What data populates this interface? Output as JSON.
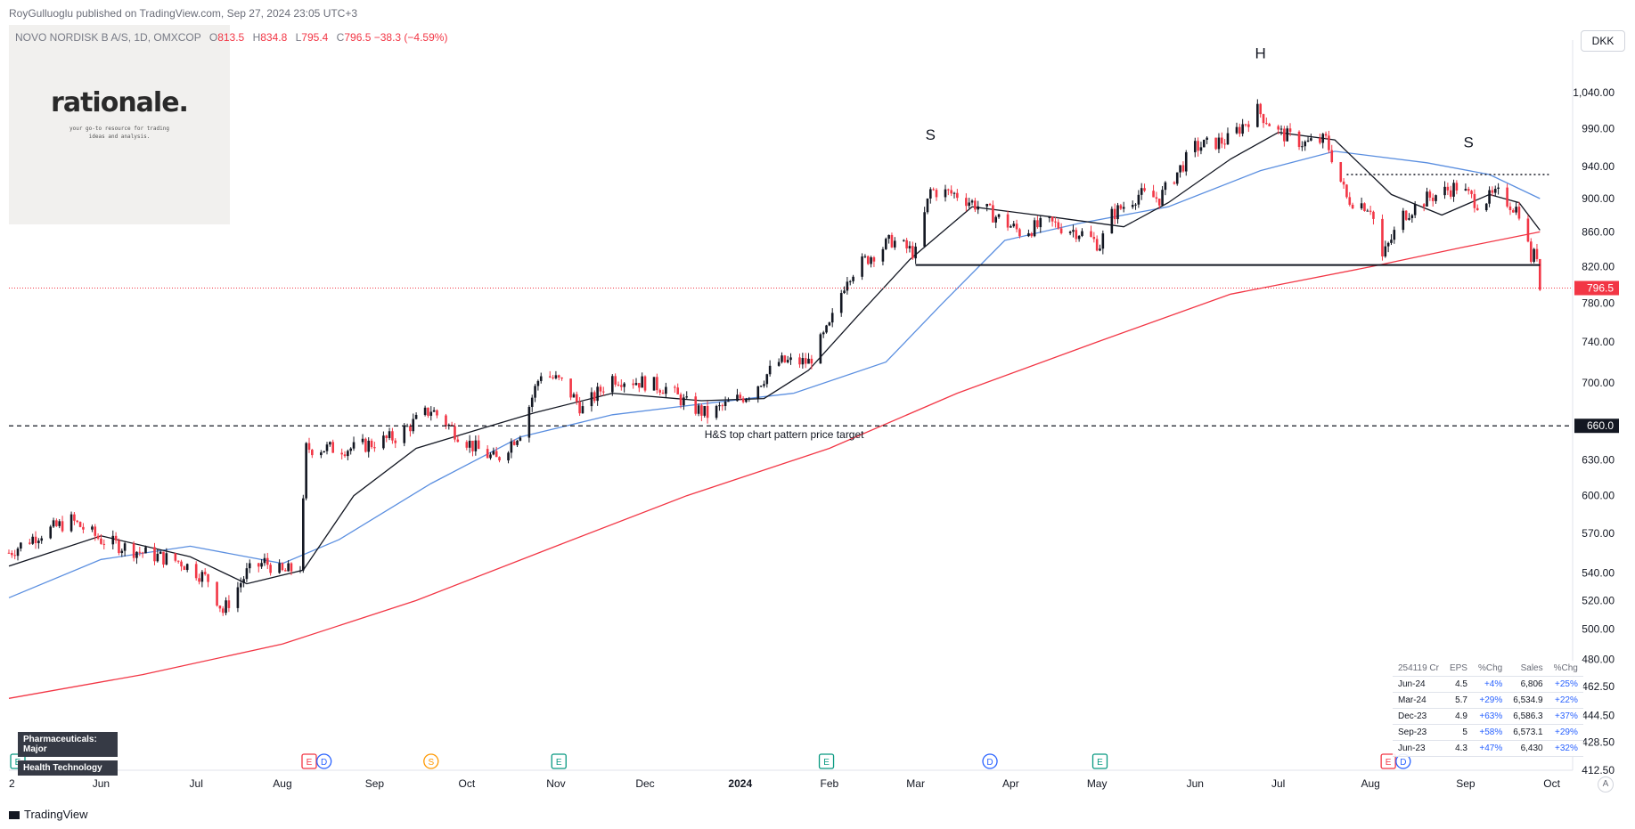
{
  "header": {
    "publisher": "RoyGulluoglu published on TradingView.com, Sep 27, 2024 23:05 UTC+3"
  },
  "legend": {
    "symbol": "NOVO NORDISK B A/S, 1D, OMXCOP",
    "open_label": "O",
    "open": "813.5",
    "high_label": "H",
    "high": "834.8",
    "low_label": "L",
    "low": "795.4",
    "close_label": "C",
    "close": "796.5",
    "change": "−38.3 (−4.59%)"
  },
  "logo": {
    "title": "rationale.",
    "subtitle": "your go-to resource for trading ideas and analysis."
  },
  "currency": "DKK",
  "tags": [
    "Pharmaceuticals: Major",
    "Health Technology"
  ],
  "earnings_table": {
    "headers": [
      "254119 Cr",
      "EPS",
      "%Chg",
      "Sales",
      "%Chg"
    ],
    "rows": [
      [
        "Jun-24",
        "4.5",
        "+4%",
        "6,806",
        "+25%"
      ],
      [
        "Mar-24",
        "5.7",
        "+29%",
        "6,534.9",
        "+22%"
      ],
      [
        "Dec-23",
        "4.9",
        "+63%",
        "6,586.3",
        "+37%"
      ],
      [
        "Sep-23",
        "5",
        "+58%",
        "6,573.1",
        "+29%"
      ],
      [
        "Jun-23",
        "4.3",
        "+47%",
        "6,430",
        "+32%"
      ]
    ]
  },
  "footer": {
    "brand": "TradingView"
  },
  "axis_auto": "A",
  "colors": {
    "up": "#131722",
    "down": "#f23645",
    "ma_fast": "#131722",
    "ma_mid": "#5b8fe0",
    "ma_slow": "#f23645",
    "neckline": "#131722",
    "target": "#131722",
    "last_price_bg": "#f23645"
  },
  "chart_data": {
    "type": "candlestick",
    "y_scale": "log",
    "y_ticks": [
      412.5,
      428.5,
      444.5,
      462.5,
      480,
      500,
      520,
      540,
      570,
      600,
      630,
      660,
      700,
      740,
      780,
      820,
      860,
      900,
      940,
      990,
      1040
    ],
    "y_tick_labels": [
      "412.50",
      "428.50",
      "444.50",
      "462.50",
      "480.00",
      "500.00",
      "520.00",
      "540.00",
      "570.00",
      "600.00",
      "630.00",
      "660.00",
      "700.00",
      "740.00",
      "780.00",
      "820.00",
      "860.00",
      "900.00",
      "940.00",
      "990.00",
      "1,040.00"
    ],
    "x_range": [
      "2023-05-01",
      "2024-10-08"
    ],
    "x_ticks": [
      {
        "date": "2023-05-02",
        "label": "2"
      },
      {
        "date": "2023-06-01",
        "label": "Jun"
      },
      {
        "date": "2023-07-03",
        "label": "Jul"
      },
      {
        "date": "2023-08-01",
        "label": "Aug"
      },
      {
        "date": "2023-09-01",
        "label": "Sep"
      },
      {
        "date": "2023-10-02",
        "label": "Oct"
      },
      {
        "date": "2023-11-01",
        "label": "Nov"
      },
      {
        "date": "2023-12-01",
        "label": "Dec"
      },
      {
        "date": "2024-01-02",
        "label": "2024"
      },
      {
        "date": "2024-02-01",
        "label": "Feb"
      },
      {
        "date": "2024-03-01",
        "label": "Mar"
      },
      {
        "date": "2024-04-02",
        "label": "Apr"
      },
      {
        "date": "2024-05-01",
        "label": "May"
      },
      {
        "date": "2024-06-03",
        "label": "Jun"
      },
      {
        "date": "2024-07-01",
        "label": "Jul"
      },
      {
        "date": "2024-08-01",
        "label": "Aug"
      },
      {
        "date": "2024-09-02",
        "label": "Sep"
      },
      {
        "date": "2024-10-01",
        "label": "Oct"
      }
    ],
    "price_path": [
      [
        "2023-05-01",
        555
      ],
      [
        "2023-05-10",
        568
      ],
      [
        "2023-05-22",
        580
      ],
      [
        "2023-06-01",
        565
      ],
      [
        "2023-06-15",
        555
      ],
      [
        "2023-06-28",
        548
      ],
      [
        "2023-07-07",
        535
      ],
      [
        "2023-07-12",
        512
      ],
      [
        "2023-07-20",
        540
      ],
      [
        "2023-07-26",
        548
      ],
      [
        "2023-08-01",
        540
      ],
      [
        "2023-08-07",
        545
      ],
      [
        "2023-08-09",
        640
      ],
      [
        "2023-08-25",
        640
      ],
      [
        "2023-09-08",
        650
      ],
      [
        "2023-09-20",
        675
      ],
      [
        "2023-09-28",
        655
      ],
      [
        "2023-10-05",
        640
      ],
      [
        "2023-10-12",
        630
      ],
      [
        "2023-10-20",
        655
      ],
      [
        "2023-10-27",
        710
      ],
      [
        "2023-11-03",
        700
      ],
      [
        "2023-11-10",
        675
      ],
      [
        "2023-11-20",
        705
      ],
      [
        "2023-12-01",
        700
      ],
      [
        "2023-12-08",
        695
      ],
      [
        "2023-12-15",
        680
      ],
      [
        "2023-12-22",
        670
      ],
      [
        "2024-01-05",
        690
      ],
      [
        "2024-01-15",
        720
      ],
      [
        "2024-01-25",
        720
      ],
      [
        "2024-02-01",
        755
      ],
      [
        "2024-02-07",
        810
      ],
      [
        "2024-02-14",
        830
      ],
      [
        "2024-02-22",
        850
      ],
      [
        "2024-03-01",
        835
      ],
      [
        "2024-03-06",
        910
      ],
      [
        "2024-03-15",
        905
      ],
      [
        "2024-03-25",
        885
      ],
      [
        "2024-04-05",
        860
      ],
      [
        "2024-04-15",
        870
      ],
      [
        "2024-04-25",
        860
      ],
      [
        "2024-05-02",
        845
      ],
      [
        "2024-05-06",
        880
      ],
      [
        "2024-05-15",
        905
      ],
      [
        "2024-05-22",
        900
      ],
      [
        "2024-06-03",
        965
      ],
      [
        "2024-06-14",
        975
      ],
      [
        "2024-06-24",
        1015
      ],
      [
        "2024-07-01",
        985
      ],
      [
        "2024-07-10",
        970
      ],
      [
        "2024-07-17",
        975
      ],
      [
        "2024-07-24",
        900
      ],
      [
        "2024-08-01",
        890
      ],
      [
        "2024-08-05",
        830
      ],
      [
        "2024-08-12",
        880
      ],
      [
        "2024-08-20",
        900
      ],
      [
        "2024-08-30",
        915
      ],
      [
        "2024-09-06",
        895
      ],
      [
        "2024-09-13",
        905
      ],
      [
        "2024-09-20",
        885
      ],
      [
        "2024-09-24",
        830
      ],
      [
        "2024-09-26",
        835
      ],
      [
        "2024-09-27",
        796.5
      ]
    ],
    "ma_fast": [
      [
        "2023-05-01",
        545
      ],
      [
        "2023-06-01",
        568
      ],
      [
        "2023-07-01",
        552
      ],
      [
        "2023-07-20",
        532
      ],
      [
        "2023-08-08",
        542
      ],
      [
        "2023-08-25",
        600
      ],
      [
        "2023-09-15",
        640
      ],
      [
        "2023-10-10",
        660
      ],
      [
        "2023-10-25",
        672
      ],
      [
        "2023-11-20",
        690
      ],
      [
        "2023-12-20",
        683
      ],
      [
        "2024-01-10",
        685
      ],
      [
        "2024-01-25",
        712
      ],
      [
        "2024-02-10",
        765
      ],
      [
        "2024-02-28",
        828
      ],
      [
        "2024-03-20",
        890
      ],
      [
        "2024-04-15",
        878
      ],
      [
        "2024-05-10",
        866
      ],
      [
        "2024-05-25",
        895
      ],
      [
        "2024-06-15",
        950
      ],
      [
        "2024-07-01",
        985
      ],
      [
        "2024-07-20",
        975
      ],
      [
        "2024-08-08",
        905
      ],
      [
        "2024-08-25",
        880
      ],
      [
        "2024-09-10",
        905
      ],
      [
        "2024-09-20",
        895
      ],
      [
        "2024-09-27",
        862
      ]
    ],
    "ma_mid": [
      [
        "2023-05-01",
        522
      ],
      [
        "2023-06-01",
        550
      ],
      [
        "2023-07-01",
        560
      ],
      [
        "2023-08-01",
        547
      ],
      [
        "2023-08-20",
        565
      ],
      [
        "2023-09-20",
        610
      ],
      [
        "2023-10-20",
        650
      ],
      [
        "2023-11-20",
        670
      ],
      [
        "2023-12-20",
        680
      ],
      [
        "2024-01-20",
        690
      ],
      [
        "2024-02-20",
        720
      ],
      [
        "2024-03-10",
        780
      ],
      [
        "2024-03-31",
        850
      ],
      [
        "2024-04-25",
        870
      ],
      [
        "2024-05-25",
        890
      ],
      [
        "2024-06-25",
        935
      ],
      [
        "2024-07-20",
        960
      ],
      [
        "2024-08-20",
        945
      ],
      [
        "2024-09-10",
        930
      ],
      [
        "2024-09-27",
        900
      ]
    ],
    "ma_slow": [
      [
        "2023-05-01",
        455
      ],
      [
        "2023-06-15",
        470
      ],
      [
        "2023-08-01",
        490
      ],
      [
        "2023-09-15",
        520
      ],
      [
        "2023-11-01",
        560
      ],
      [
        "2023-12-15",
        600
      ],
      [
        "2024-02-01",
        640
      ],
      [
        "2024-03-15",
        690
      ],
      [
        "2024-05-01",
        740
      ],
      [
        "2024-06-15",
        790
      ],
      [
        "2024-08-01",
        820
      ],
      [
        "2024-09-01",
        842
      ],
      [
        "2024-09-27",
        860
      ]
    ],
    "neckline": {
      "value": 822,
      "from": "2024-03-01",
      "to": "2024-09-27"
    },
    "resistance_dotted": {
      "value": 930,
      "from": "2024-07-24",
      "to": "2024-09-30"
    },
    "target_line": {
      "value": 660,
      "label": "H&S top chart pattern price target",
      "label_date": "2023-12-21"
    },
    "last_price": {
      "value": 796.5,
      "label": "796.5"
    },
    "target_price_label": "660.0",
    "annotations": [
      {
        "label": "S",
        "date": "2024-03-06",
        "value": 975
      },
      {
        "label": "H",
        "date": "2024-06-25",
        "value": 1090
      },
      {
        "label": "S",
        "date": "2024-09-03",
        "value": 965
      }
    ],
    "events": [
      {
        "type": "E",
        "date": "2023-05-04",
        "style": "earn-green"
      },
      {
        "type": "E",
        "date": "2023-08-10",
        "style": "earn-red"
      },
      {
        "type": "D",
        "date": "2023-08-15",
        "style": "div"
      },
      {
        "type": "S",
        "date": "2023-09-20",
        "style": "split"
      },
      {
        "type": "E",
        "date": "2023-11-02",
        "style": "earn-green"
      },
      {
        "type": "E",
        "date": "2024-01-31",
        "style": "earn-green"
      },
      {
        "type": "D",
        "date": "2024-03-26",
        "style": "div"
      },
      {
        "type": "E",
        "date": "2024-05-02",
        "style": "earn-green"
      },
      {
        "type": "E",
        "date": "2024-08-07",
        "style": "earn-red"
      },
      {
        "type": "D",
        "date": "2024-08-12",
        "style": "div"
      }
    ]
  }
}
